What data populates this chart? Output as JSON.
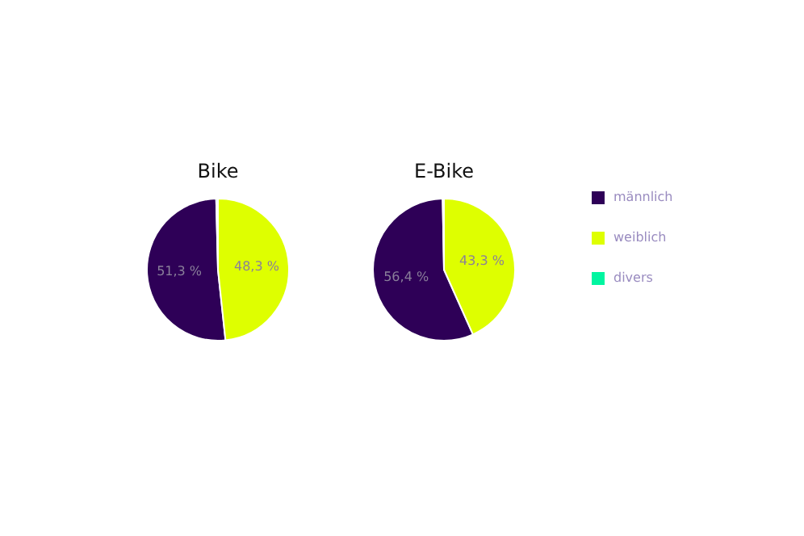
{
  "chart_data": [
    {
      "type": "pie",
      "title": "Bike",
      "categories": [
        null,
        null,
        null
      ],
      "values": [
        51.3,
        48.3,
        0.4
      ],
      "colors": [
        "#2e0057",
        "#deff00",
        "#00f5a0"
      ],
      "value_labels": [
        "51,3 %",
        "48,3 %",
        null
      ],
      "legend": false
    },
    {
      "type": "pie",
      "title": "E-Bike",
      "categories": [
        "männlich",
        "weiblich",
        "divers"
      ],
      "values": [
        56.4,
        43.3,
        0.3
      ],
      "colors": [
        "#2e0057",
        "#deff00",
        "#00f5a0"
      ],
      "value_labels": [
        "56,4 %",
        "43,3 %",
        null
      ],
      "legend": "right"
    }
  ]
}
